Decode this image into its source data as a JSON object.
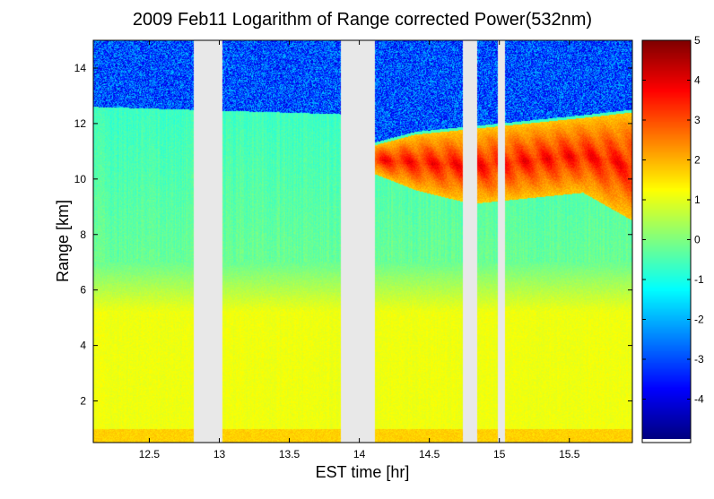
{
  "chart_data": {
    "type": "heatmap",
    "title": "2009 Feb11  Logarithm of Range corrected Power(532nm)",
    "xlabel": "EST time [hr]",
    "ylabel": "Range [km]",
    "xlim": [
      12.1,
      15.95
    ],
    "ylim": [
      0.5,
      15.0
    ],
    "xticks": [
      "12.5",
      "13",
      "13.5",
      "14",
      "14.5",
      "15",
      "15.5"
    ],
    "yticks": [
      "2",
      "4",
      "6",
      "8",
      "10",
      "12",
      "14"
    ],
    "colorbar": {
      "range": [
        -5,
        5
      ],
      "ticks": [
        "5",
        "4",
        "3",
        "2",
        "1",
        "0",
        "-1",
        "-2",
        "-3",
        "-4"
      ],
      "colormap": "jet"
    },
    "no_data_gaps_hr": [
      [
        12.82,
        13.02
      ],
      [
        13.87,
        14.11
      ],
      [
        14.74,
        14.84
      ],
      [
        14.99,
        15.04
      ]
    ],
    "field": {
      "noisy_top_value": -3,
      "background_value": -0.2,
      "lower_value": 1.1,
      "cloud": {
        "top_km": [
          [
            14.1,
            11.2
          ],
          [
            14.4,
            11.6
          ],
          [
            14.8,
            11.8
          ],
          [
            15.2,
            12.0
          ],
          [
            15.6,
            12.2
          ],
          [
            15.95,
            12.4
          ]
        ],
        "base_km": [
          [
            14.1,
            10.2
          ],
          [
            14.4,
            9.6
          ],
          [
            14.8,
            9.1
          ],
          [
            15.2,
            9.3
          ],
          [
            15.6,
            9.5
          ],
          [
            15.95,
            8.5
          ]
        ],
        "peak_value": 4
      }
    }
  }
}
